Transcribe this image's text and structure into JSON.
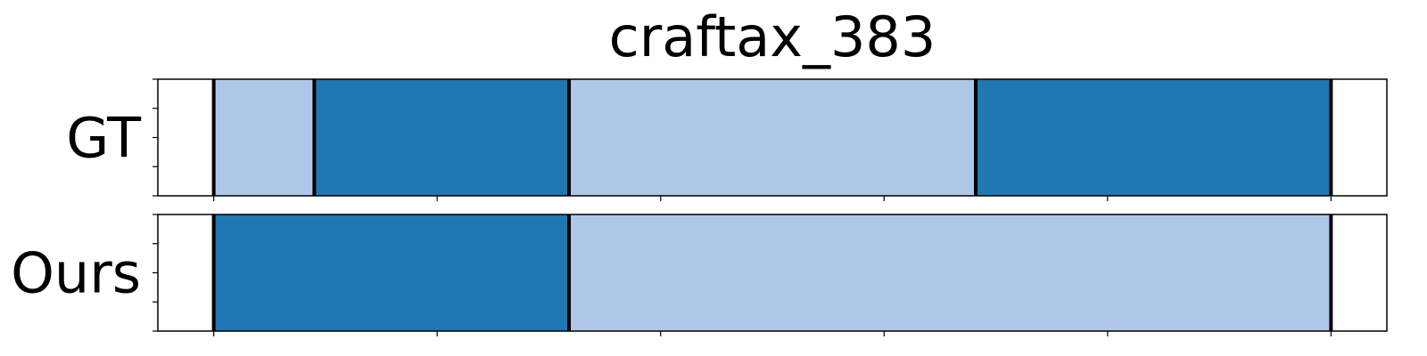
{
  "chart_data": {
    "type": "segmentation",
    "title": "craftax_383",
    "x_range": [
      -25,
      525
    ],
    "x_ticks": [
      0,
      100,
      200,
      300,
      400,
      500
    ],
    "y_ticks_per_row": 5,
    "colors": {
      "light": "#aec7e8",
      "dark": "#1f77b4"
    },
    "rows": [
      {
        "label": "GT",
        "segments": [
          {
            "start": 0,
            "end": 45,
            "class": "light"
          },
          {
            "start": 45,
            "end": 159,
            "class": "dark"
          },
          {
            "start": 159,
            "end": 341,
            "class": "light"
          },
          {
            "start": 341,
            "end": 500,
            "class": "dark"
          }
        ],
        "boundaries": [
          0,
          45,
          159,
          341,
          500
        ]
      },
      {
        "label": "Ours",
        "segments": [
          {
            "start": 0,
            "end": 159,
            "class": "dark"
          },
          {
            "start": 159,
            "end": 500,
            "class": "light"
          }
        ],
        "boundaries": [
          0,
          159,
          500
        ]
      }
    ]
  }
}
